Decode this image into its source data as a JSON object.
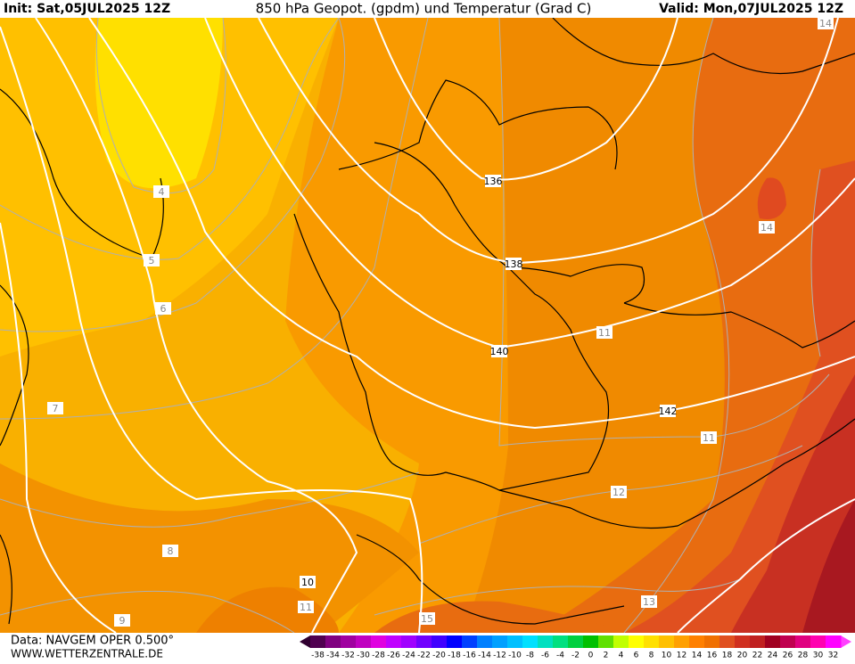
{
  "header": {
    "init": "Init: Sat,05JUL2025 12Z",
    "title": "850 hPa Geopot. (gpdm) und Temperatur (Grad C)",
    "valid": "Valid: Mon,07JUL2025 12Z"
  },
  "geopotential_labels": [
    "136",
    "138",
    "140",
    "142",
    "10"
  ],
  "temperature_labels": [
    "4",
    "5",
    "6",
    "7",
    "8",
    "9",
    "11",
    "11",
    "11",
    "12",
    "13",
    "14",
    "14",
    "15"
  ],
  "footer": {
    "data": "Data: NAVGEM OPER 0.500°",
    "site": "WWW.WETTERZENTRALE.DE"
  },
  "scale": {
    "labels": [
      -38,
      -34,
      -32,
      -30,
      -28,
      -26,
      -24,
      -22,
      -20,
      -18,
      -16,
      -14,
      -12,
      -10,
      -8,
      -6,
      -4,
      -2,
      0,
      2,
      4,
      6,
      8,
      10,
      12,
      14,
      16,
      18,
      20,
      22,
      24,
      26,
      28,
      30,
      32
    ],
    "colors": [
      "#500050",
      "#800080",
      "#a000a0",
      "#c000c0",
      "#e000e0",
      "#c000ff",
      "#a000ff",
      "#7000ff",
      "#4000ff",
      "#0000ff",
      "#0040ff",
      "#0080ff",
      "#00a0ff",
      "#00c0ff",
      "#00e0ff",
      "#00e0c0",
      "#00e080",
      "#00d040",
      "#00c000",
      "#60e000",
      "#c0ff00",
      "#ffff00",
      "#ffe000",
      "#ffc000",
      "#ffa000",
      "#ff8000",
      "#f07000",
      "#e05020",
      "#d03020",
      "#c02020",
      "#a00020",
      "#c00050",
      "#e00080",
      "#ff00b0",
      "#ff00ff"
    ]
  }
}
